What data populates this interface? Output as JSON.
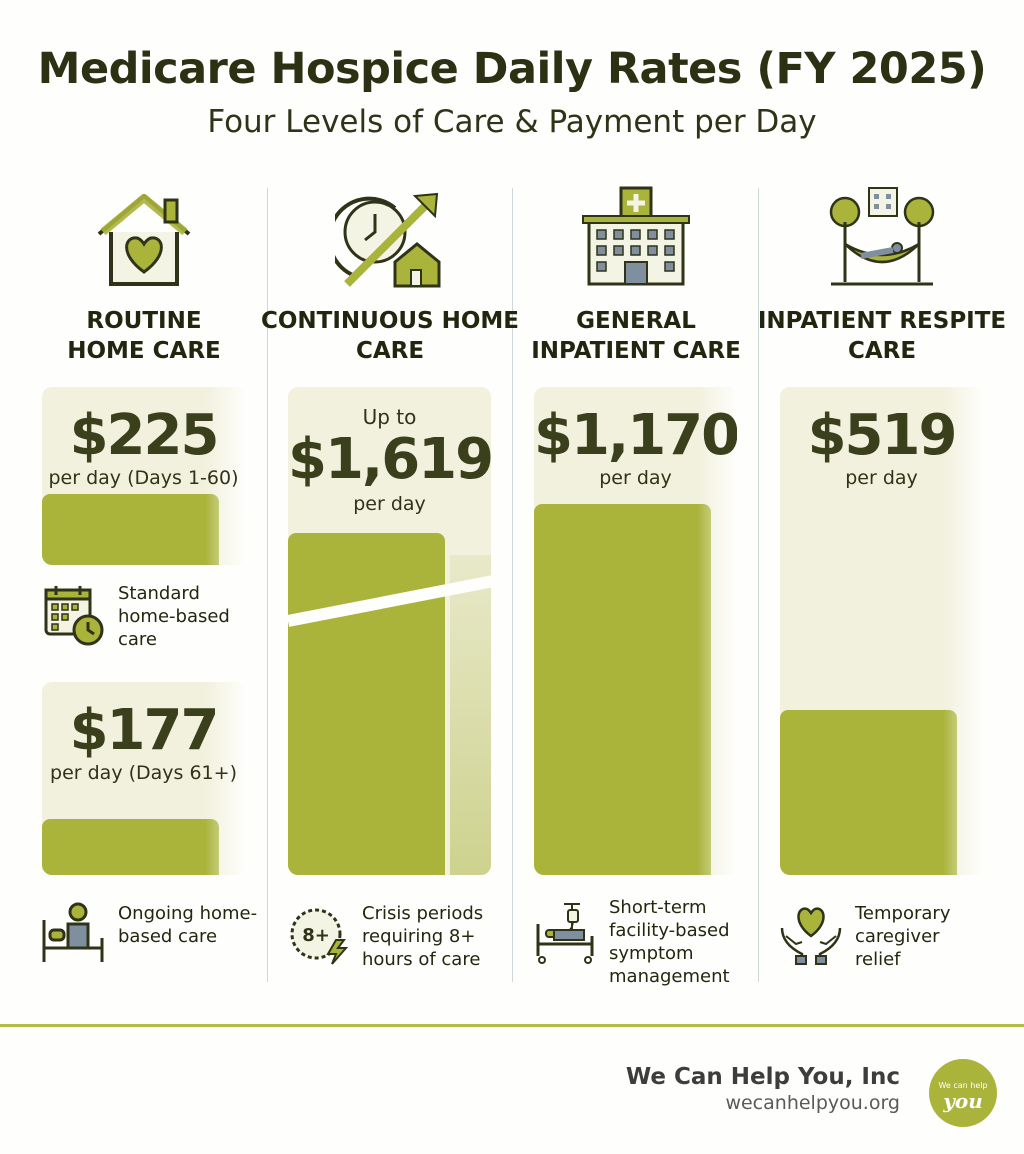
{
  "header": {
    "title": "Medicare Hospice Daily Rates (FY 2025)",
    "subtitle": "Four Levels of Care & Payment per Day"
  },
  "columns": [
    {
      "heading": "ROUTINE HOME CARE",
      "icon": "house-heart-icon",
      "tiers": [
        {
          "price": "$225",
          "sub": "per day (Days 1-60)",
          "desc": "Standard home-based care",
          "icon": "calendar-clock-icon"
        },
        {
          "price": "$177",
          "sub": "per day (Days 61+)",
          "desc": "Ongoing home-based care",
          "icon": "person-in-bed-icon"
        }
      ]
    },
    {
      "heading": "CONTINUOUS HOME CARE",
      "icon": "clock-arrow-house-icon",
      "pre": "Up to",
      "price": "$1,619",
      "sub": "per day",
      "desc": "Crisis periods requiring 8+ hours of care",
      "desc_icon": "8-plus-hours-icon",
      "badge": "8+"
    },
    {
      "heading": "GENERAL INPATIENT CARE",
      "icon": "hospital-building-icon",
      "price": "$1,170",
      "sub": "per day",
      "desc": "Short-term facility-based symptom management",
      "desc_icon": "hospital-bed-iv-icon"
    },
    {
      "heading": "INPATIENT RESPITE CARE",
      "icon": "hammock-trees-icon",
      "price": "$519",
      "sub": "per day",
      "desc": "Temporary caregiver relief",
      "desc_icon": "hands-heart-icon"
    }
  ],
  "chart_data": {
    "type": "bar",
    "title": "Medicare Hospice Daily Rates (FY 2025)",
    "subtitle": "Four Levels of Care & Payment per Day",
    "categories": [
      "Routine Home Care (Days 1-60)",
      "Routine Home Care (Days 61+)",
      "Continuous Home Care",
      "General Inpatient Care",
      "Inpatient Respite Care"
    ],
    "values": [
      225,
      177,
      1619,
      1170,
      519
    ],
    "unit": "$ per day",
    "y_axis_broken": true
  },
  "footer": {
    "brand": "We Can Help You, Inc",
    "url": "wecanhelpyou.org",
    "logo_text_1": "We can help",
    "logo_text_2": "you"
  },
  "colors": {
    "accent": "#aab33a",
    "card_bg": "#f2f1dd",
    "text_dark": "#2c3114",
    "divider": "#cfd6d8"
  }
}
